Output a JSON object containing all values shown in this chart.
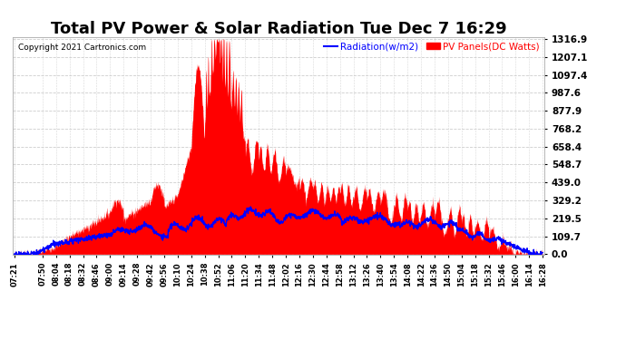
{
  "title": "Total PV Power & Solar Radiation Tue Dec 7 16:29",
  "copyright": "Copyright 2021 Cartronics.com",
  "legend_radiation": "Radiation(w/m2)",
  "legend_panels": "PV Panels(DC Watts)",
  "yticks": [
    0.0,
    109.7,
    219.5,
    329.2,
    439.0,
    548.7,
    658.4,
    768.2,
    877.9,
    987.6,
    1097.4,
    1207.1,
    1316.9
  ],
  "ymax": 1316.9,
  "ymin": 0.0,
  "bg_color": "#ffffff",
  "grid_color": "#c8c8c8",
  "fill_color": "#ff0000",
  "line_color": "#0000ff",
  "title_fontsize": 13,
  "xtick_labels": [
    "07:21",
    "07:50",
    "08:04",
    "08:18",
    "08:32",
    "08:46",
    "09:00",
    "09:14",
    "09:28",
    "09:42",
    "09:56",
    "10:10",
    "10:24",
    "10:38",
    "10:52",
    "11:06",
    "11:20",
    "11:34",
    "11:48",
    "12:02",
    "12:16",
    "12:30",
    "12:44",
    "12:58",
    "13:12",
    "13:26",
    "13:40",
    "13:54",
    "14:08",
    "14:22",
    "14:36",
    "14:50",
    "15:04",
    "15:18",
    "15:32",
    "15:46",
    "16:00",
    "16:14",
    "16:28"
  ]
}
